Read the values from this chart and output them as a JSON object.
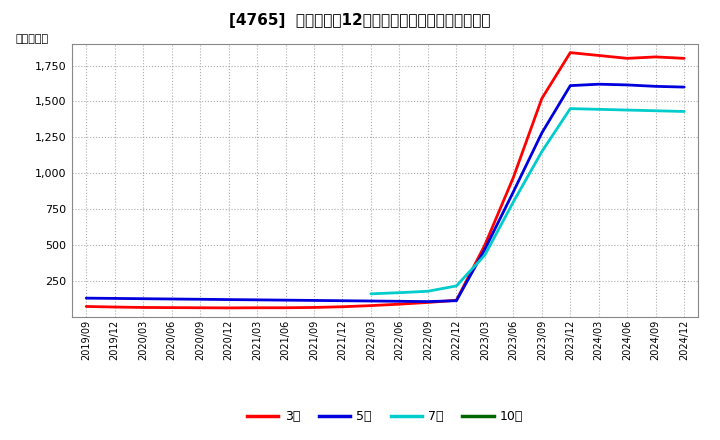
{
  "title": "[4765]  当期純利益12か月移動合計の標準偏差の推移",
  "ylabel": "（百万円）",
  "background_color": "#ffffff",
  "plot_bg_color": "#ffffff",
  "grid_color": "#aaaaaa",
  "ylim": [
    0,
    1900
  ],
  "yticks": [
    250,
    500,
    750,
    1000,
    1250,
    1500,
    1750
  ],
  "series": {
    "3年": {
      "color": "#ff0000",
      "dates": [
        "2019/09",
        "2019/12",
        "2020/03",
        "2020/06",
        "2020/09",
        "2020/12",
        "2021/03",
        "2021/06",
        "2021/09",
        "2021/12",
        "2022/03",
        "2022/06",
        "2022/09",
        "2022/12",
        "2023/03",
        "2023/06",
        "2023/09",
        "2023/12",
        "2024/03",
        "2024/06",
        "2024/09",
        "2024/12"
      ],
      "values": [
        72,
        68,
        65,
        64,
        63,
        62,
        63,
        63,
        65,
        70,
        78,
        88,
        100,
        115,
        500,
        970,
        1520,
        1840,
        1820,
        1800,
        1810,
        1800
      ]
    },
    "5年": {
      "color": "#0000dd",
      "dates": [
        "2019/09",
        "2019/12",
        "2020/03",
        "2020/06",
        "2020/09",
        "2020/12",
        "2021/03",
        "2021/06",
        "2021/09",
        "2021/12",
        "2022/03",
        "2022/06",
        "2022/09",
        "2022/12",
        "2023/03",
        "2023/06",
        "2023/09",
        "2023/12",
        "2024/03",
        "2024/06",
        "2024/09",
        "2024/12"
      ],
      "values": [
        130,
        128,
        126,
        124,
        122,
        120,
        118,
        116,
        114,
        112,
        110,
        108,
        106,
        112,
        470,
        870,
        1280,
        1610,
        1620,
        1615,
        1605,
        1600
      ]
    },
    "7年": {
      "color": "#00cccc",
      "dates": [
        "2022/03",
        "2022/06",
        "2022/09",
        "2022/12",
        "2023/03",
        "2023/06",
        "2023/09",
        "2023/12",
        "2024/03",
        "2024/06",
        "2024/09",
        "2024/12"
      ],
      "values": [
        160,
        168,
        178,
        215,
        430,
        800,
        1150,
        1450,
        1445,
        1440,
        1435,
        1430
      ]
    },
    "10年": {
      "color": "#006600",
      "dates": [],
      "values": []
    }
  },
  "legend_labels": [
    "3年",
    "5年",
    "7年",
    "10年"
  ],
  "legend_colors": [
    "#ff0000",
    "#0000dd",
    "#00cccc",
    "#006600"
  ],
  "xtick_labels": [
    "2019/09",
    "2019/12",
    "2020/03",
    "2020/06",
    "2020/09",
    "2020/12",
    "2021/03",
    "2021/06",
    "2021/09",
    "2021/12",
    "2022/03",
    "2022/06",
    "2022/09",
    "2022/12",
    "2023/03",
    "2023/06",
    "2023/09",
    "2023/12",
    "2024/03",
    "2024/06",
    "2024/09",
    "2024/12"
  ]
}
